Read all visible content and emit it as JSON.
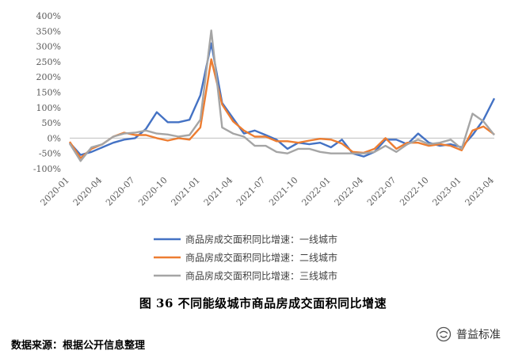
{
  "chart_data": {
    "type": "line",
    "title": "",
    "xlabel": "",
    "ylabel": "",
    "ylim": [
      -100,
      400
    ],
    "yticks": [
      -100,
      -50,
      0,
      50,
      100,
      150,
      200,
      250,
      300,
      350,
      400
    ],
    "ytick_labels": [
      "-100%",
      "-50%",
      "0%",
      "50%",
      "100%",
      "150%",
      "200%",
      "250%",
      "300%",
      "350%",
      "400%"
    ],
    "x": [
      "2020-01",
      "2020-02",
      "2020-03",
      "2020-04",
      "2020-05",
      "2020-06",
      "2020-07",
      "2020-08",
      "2020-09",
      "2020-10",
      "2020-11",
      "2020-12",
      "2021-01",
      "2021-02",
      "2021-03",
      "2021-04",
      "2021-05",
      "2021-06",
      "2021-07",
      "2021-08",
      "2021-09",
      "2021-10",
      "2021-11",
      "2021-12",
      "2022-01",
      "2022-02",
      "2022-03",
      "2022-04",
      "2022-05",
      "2022-06",
      "2022-07",
      "2022-08",
      "2022-09",
      "2022-10",
      "2022-11",
      "2022-12",
      "2023-01",
      "2023-02",
      "2023-03",
      "2023-04"
    ],
    "xtick_labels": [
      "2020-01",
      "2020-04",
      "2020-07",
      "2020-10",
      "2021-01",
      "2021-04",
      "2021-07",
      "2021-10",
      "2022-01",
      "2022-04",
      "2022-07",
      "2022-10",
      "2023-01",
      "2023-04"
    ],
    "grid": false,
    "legend_position": "bottom",
    "series": [
      {
        "name": "商品房成交面积同比增速：一线城市",
        "color": "#4472C4",
        "values": [
          -15,
          -55,
          -45,
          -30,
          -15,
          -5,
          0,
          30,
          85,
          52,
          52,
          60,
          140,
          310,
          115,
          65,
          15,
          25,
          10,
          -5,
          -35,
          -15,
          -20,
          -15,
          -30,
          -5,
          -50,
          -60,
          -45,
          -5,
          -5,
          -20,
          15,
          -15,
          -25,
          -20,
          -30,
          10,
          60,
          130
        ]
      },
      {
        "name": "商品房成交面积同比增速：二线城市",
        "color": "#ED7D31",
        "values": [
          -12,
          -65,
          -35,
          -20,
          5,
          18,
          10,
          10,
          0,
          -8,
          0,
          -5,
          35,
          258,
          110,
          55,
          25,
          5,
          5,
          -10,
          -10,
          -15,
          -8,
          -2,
          -5,
          -18,
          -45,
          -48,
          -35,
          0,
          -35,
          -15,
          -15,
          -25,
          -20,
          -25,
          -40,
          25,
          38,
          12
        ]
      },
      {
        "name": "商品房成交面积同比增速：三线城市",
        "color": "#A5A5A5",
        "values": [
          -18,
          -75,
          -30,
          -20,
          5,
          15,
          18,
          25,
          15,
          12,
          5,
          10,
          60,
          352,
          35,
          15,
          5,
          -25,
          -25,
          -45,
          -50,
          -35,
          -35,
          -45,
          -50,
          -50,
          -50,
          -50,
          -45,
          -25,
          -45,
          -20,
          -5,
          -20,
          -15,
          -5,
          -35,
          80,
          55,
          10
        ]
      }
    ]
  },
  "caption": "图  36   不同能级城市商品房成交面积同比增速",
  "source": "数据来源：根据公开信息整理",
  "watermark": {
    "icon": "wechat-icon",
    "text": "普益标准"
  }
}
